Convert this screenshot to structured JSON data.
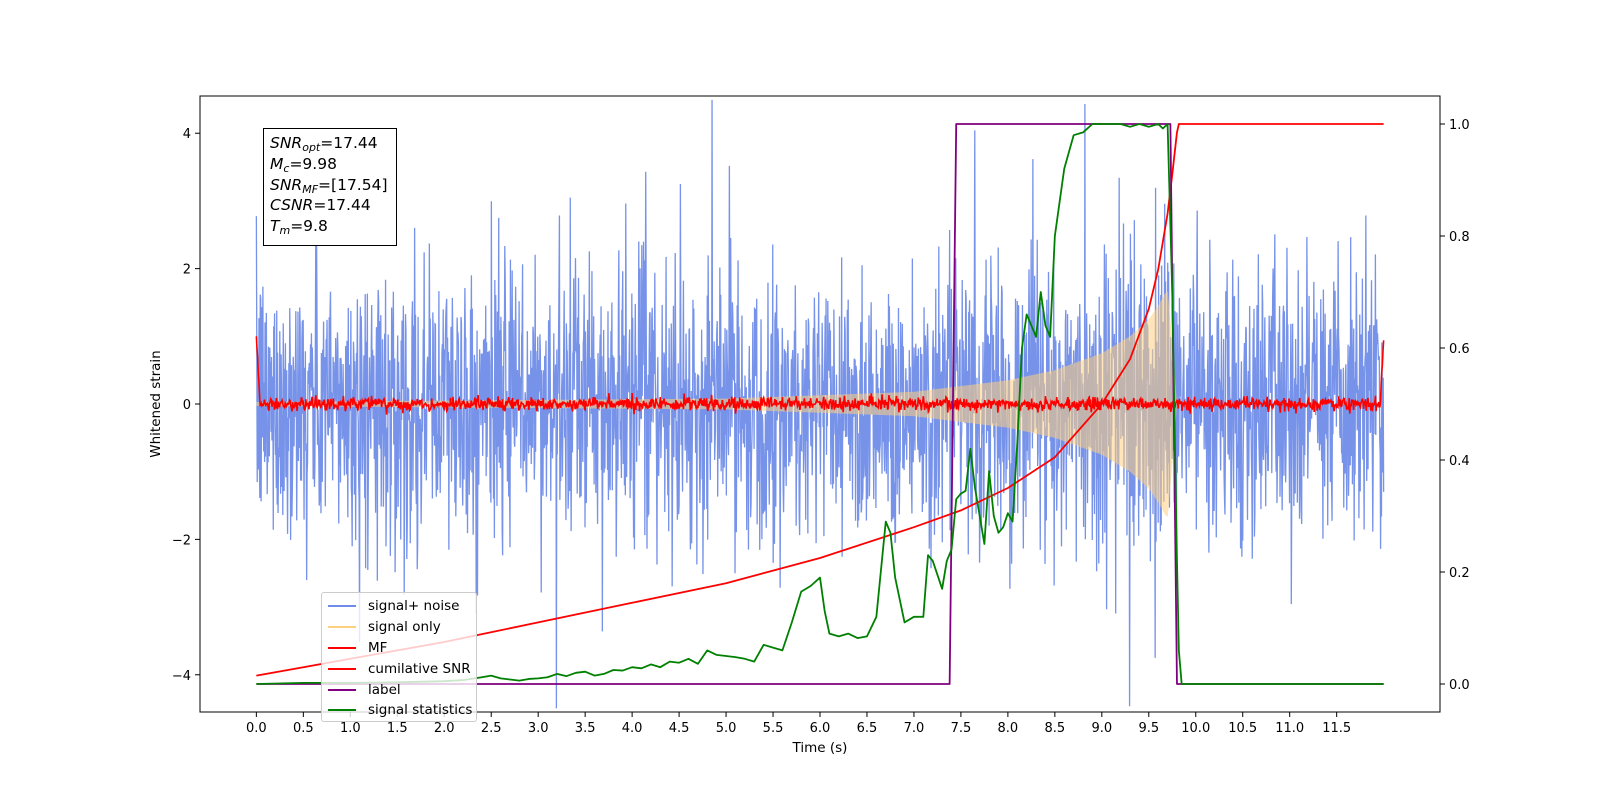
{
  "chart_data": {
    "type": "line",
    "title": "",
    "xlabel": "Time (s)",
    "ylabel": "Whitened strain",
    "ylabel_right": "",
    "xlim": [
      -0.6,
      12.6
    ],
    "ylim": [
      -4.55,
      4.55
    ],
    "ylim_right": [
      -0.05,
      1.05
    ],
    "x_ticks": [
      "0.0",
      "0.5",
      "1.0",
      "1.5",
      "2.0",
      "2.5",
      "3.0",
      "3.5",
      "4.0",
      "4.5",
      "5.0",
      "5.5",
      "6.0",
      "6.5",
      "7.0",
      "7.5",
      "8.0",
      "8.5",
      "9.0",
      "9.5",
      "10.0",
      "10.5",
      "11.0",
      "11.5"
    ],
    "y_ticks": [
      "−4",
      "−2",
      "0",
      "2",
      "4"
    ],
    "y_ticks_right": [
      "0.0",
      "0.2",
      "0.4",
      "0.6",
      "0.8",
      "1.0"
    ],
    "grid": false,
    "legend_position": "lower-left",
    "annotation": {
      "snr_opt_label": "SNR",
      "snr_opt_sub": "opt",
      "snr_opt_value": "=17.44",
      "mc_label": "M",
      "mc_sub": "c",
      "mc_value": "=9.98",
      "snr_mf_label": "SNR",
      "snr_mf_sub": "MF",
      "snr_mf_value": "=[17.54]",
      "csnr_label": "CSNR",
      "csnr_value": "=17.44",
      "tm_label": "T",
      "tm_sub": "m",
      "tm_value": "=9.8"
    },
    "series": [
      {
        "name": "signal+ noise",
        "color": "#6f8ce8",
        "axis": "left",
        "description_only": false,
        "noise_amplitude": 1.0,
        "x_range": [
          0.0,
          12.0
        ]
      },
      {
        "name": "signal only",
        "color": "#ffd080",
        "axis": "left",
        "envelope": {
          "x": [
            0.0,
            5.0,
            7.0,
            8.0,
            8.5,
            9.0,
            9.3,
            9.5,
            9.6,
            9.7,
            9.75,
            9.8
          ],
          "amplitude": [
            0.03,
            0.08,
            0.18,
            0.35,
            0.5,
            0.75,
            1.0,
            1.25,
            1.45,
            1.7,
            0.9,
            0.0
          ]
        }
      },
      {
        "name": "MF",
        "color": "#ff0000",
        "axis": "left",
        "noise_amplitude": 0.05,
        "edges": {
          "start": 1.0,
          "end": 0.9
        }
      },
      {
        "name": "cumilative SNR",
        "color": "#ff0000",
        "axis": "right",
        "x": [
          0.0,
          0.5,
          1.0,
          2.0,
          3.0,
          4.0,
          5.0,
          6.0,
          7.0,
          7.5,
          8.0,
          8.5,
          9.0,
          9.3,
          9.5,
          9.6,
          9.7,
          9.75,
          9.8,
          9.82,
          12.0
        ],
        "y": [
          0.015,
          0.03,
          0.045,
          0.075,
          0.11,
          0.145,
          0.18,
          0.225,
          0.28,
          0.31,
          0.35,
          0.405,
          0.5,
          0.58,
          0.67,
          0.74,
          0.84,
          0.91,
          0.985,
          1.0,
          1.0
        ]
      },
      {
        "name": "label",
        "color": "#800080",
        "axis": "right",
        "x": [
          0.0,
          7.38,
          7.45,
          9.73,
          9.8,
          12.0
        ],
        "y": [
          0.0,
          0.0,
          1.0,
          1.0,
          0.0,
          0.0
        ]
      },
      {
        "name": "signal statistics",
        "color": "#008000",
        "axis": "right",
        "x": [
          0.0,
          0.5,
          1.0,
          1.5,
          2.0,
          2.2,
          2.4,
          2.5,
          2.6,
          2.7,
          2.8,
          2.9,
          3.0,
          3.1,
          3.2,
          3.3,
          3.4,
          3.5,
          3.6,
          3.7,
          3.8,
          3.9,
          4.0,
          4.1,
          4.2,
          4.3,
          4.4,
          4.5,
          4.6,
          4.7,
          4.8,
          4.9,
          5.0,
          5.1,
          5.2,
          5.3,
          5.4,
          5.5,
          5.6,
          5.7,
          5.8,
          5.9,
          6.0,
          6.05,
          6.1,
          6.2,
          6.3,
          6.4,
          6.5,
          6.6,
          6.7,
          6.75,
          6.8,
          6.9,
          7.0,
          7.1,
          7.15,
          7.2,
          7.3,
          7.35,
          7.4,
          7.45,
          7.5,
          7.55,
          7.6,
          7.65,
          7.7,
          7.75,
          7.8,
          7.85,
          7.9,
          7.95,
          8.0,
          8.05,
          8.1,
          8.15,
          8.2,
          8.3,
          8.35,
          8.4,
          8.45,
          8.5,
          8.6,
          8.7,
          8.8,
          8.9,
          9.0,
          9.1,
          9.2,
          9.3,
          9.4,
          9.5,
          9.6,
          9.65,
          9.7,
          9.75,
          9.8,
          9.82,
          9.85,
          9.9,
          10.0,
          12.0
        ],
        "y": [
          0.0,
          0.002,
          0.002,
          0.003,
          0.005,
          0.007,
          0.012,
          0.015,
          0.01,
          0.008,
          0.006,
          0.009,
          0.01,
          0.012,
          0.018,
          0.014,
          0.02,
          0.022,
          0.015,
          0.018,
          0.025,
          0.024,
          0.03,
          0.028,
          0.035,
          0.03,
          0.04,
          0.038,
          0.045,
          0.036,
          0.06,
          0.052,
          0.05,
          0.048,
          0.045,
          0.04,
          0.07,
          0.065,
          0.06,
          0.11,
          0.165,
          0.175,
          0.19,
          0.13,
          0.09,
          0.085,
          0.09,
          0.082,
          0.085,
          0.12,
          0.29,
          0.27,
          0.19,
          0.11,
          0.12,
          0.12,
          0.23,
          0.22,
          0.17,
          0.22,
          0.24,
          0.33,
          0.34,
          0.345,
          0.42,
          0.35,
          0.3,
          0.25,
          0.38,
          0.3,
          0.27,
          0.28,
          0.305,
          0.29,
          0.43,
          0.6,
          0.66,
          0.62,
          0.7,
          0.64,
          0.62,
          0.8,
          0.92,
          0.98,
          0.985,
          1.0,
          1.0,
          1.0,
          1.0,
          0.995,
          1.0,
          0.995,
          1.0,
          0.992,
          1.0,
          0.7,
          0.22,
          0.06,
          0.0,
          0.0,
          0.0,
          0.0
        ]
      }
    ]
  }
}
